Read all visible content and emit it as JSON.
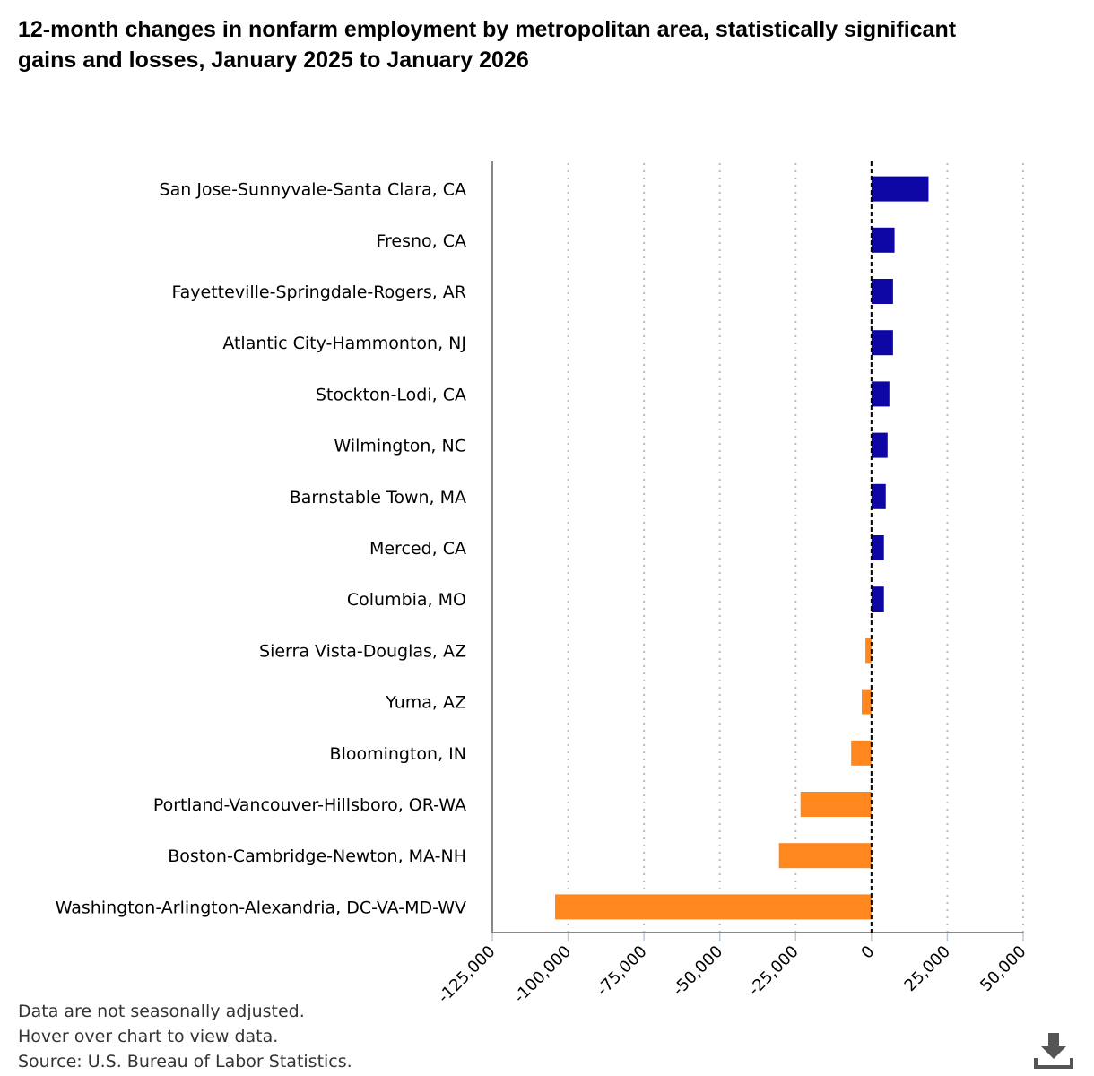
{
  "title": "12-month changes in nonfarm employment by metropolitan area, statistically significant gains and losses, January 2025 to January 2026",
  "notes": [
    "Data are not seasonally adjusted.",
    "Hover over chart to view data.",
    "Source: U.S. Bureau of Labor Statistics."
  ],
  "download_icon": "download-icon",
  "chart_data": {
    "type": "bar",
    "orientation": "horizontal",
    "title": "12-month changes in nonfarm employment by metropolitan area, statistically significant gains and losses, January 2025 to January 2026",
    "categories": [
      "San Jose-Sunnyvale-Santa Clara, CA",
      "Fresno, CA",
      "Fayetteville-Springdale-Rogers, AR",
      "Atlantic City-Hammonton, NJ",
      "Stockton-Lodi, CA",
      "Wilmington, NC",
      "Barnstable Town, MA",
      "Merced, CA",
      "Columbia, MO",
      "Sierra Vista-Douglas, AZ",
      "Yuma, AZ",
      "Bloomington, IN",
      "Portland-Vancouver-Hillsboro, OR-WA",
      "Boston-Cambridge-Newton, MA-NH",
      "Washington-Arlington-Alexandria, DC-VA-MD-WV"
    ],
    "values": [
      18800,
      7600,
      7100,
      7100,
      5900,
      5300,
      4700,
      4100,
      4100,
      -2000,
      -3200,
      -6700,
      -23400,
      -30500,
      -104300
    ],
    "xlim": [
      -125000,
      50000
    ],
    "xticks": [
      -125000,
      -100000,
      -75000,
      -50000,
      -25000,
      0,
      25000,
      50000
    ],
    "xtick_labels": [
      "-125,000",
      "-100,000",
      "-75,000",
      "-50,000",
      "-25,000",
      "0",
      "25,000",
      "50,000"
    ],
    "colors": {
      "gain": "#0e06a5",
      "loss": "#ff871d"
    },
    "grid": "vertical dotted",
    "zero_line": "dashed",
    "legend": "none"
  }
}
